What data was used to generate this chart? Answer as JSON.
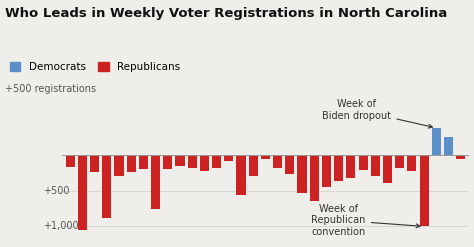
{
  "title": "Who Leads in Weekly Voter Registrations in North Carolina",
  "background_color": "#f0eeea",
  "bar_color_rep": "#cc2222",
  "bar_color_dem": "#5b8fc9",
  "values": [
    -170,
    -1050,
    -240,
    -880,
    -300,
    -240,
    -190,
    -750,
    -200,
    -160,
    -180,
    -220,
    -180,
    -90,
    -560,
    -290,
    -50,
    -180,
    -260,
    -530,
    -640,
    -450,
    -360,
    -320,
    -210,
    -290,
    -390,
    -180,
    -220,
    -1000,
    380,
    250,
    -50
  ],
  "annotation1_text": "Week of\nBiden dropout",
  "annotation2_text": "Week of\nRepublican\nconvention",
  "biden_bar_idx": 30,
  "repcon_bar_idx": 29,
  "ylim": [
    -1150,
    650
  ],
  "title_fontsize": 9.5,
  "legend_fontsize": 7.5,
  "annot_fontsize": 7.0
}
